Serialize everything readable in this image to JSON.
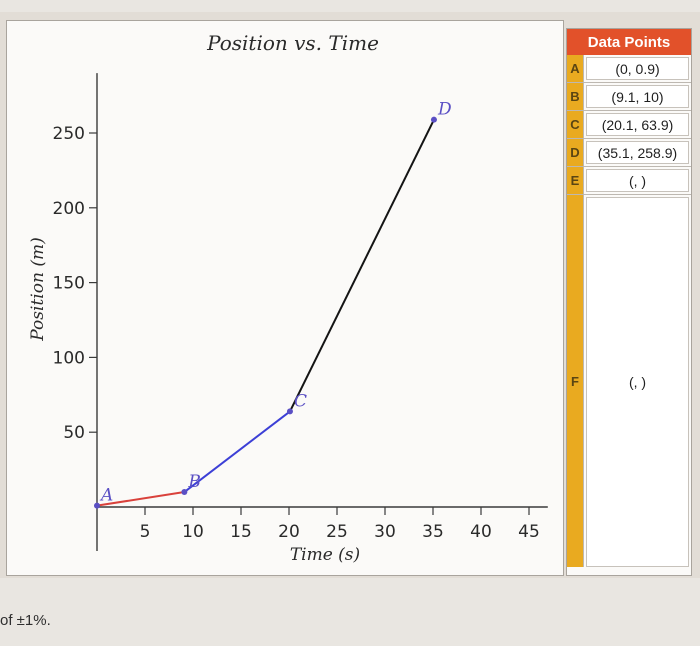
{
  "chart_data": {
    "type": "line",
    "title": "Position vs. Time",
    "xlabel": "Time (s)",
    "ylabel": "Position (m)",
    "xlim": [
      0,
      48
    ],
    "ylim": [
      0,
      290
    ],
    "x_ticks": [
      5,
      10,
      15,
      20,
      25,
      30,
      35,
      40,
      45
    ],
    "y_ticks": [
      50,
      100,
      150,
      200,
      250
    ],
    "grid": false,
    "points": [
      {
        "label": "A",
        "x": 0,
        "y": 0.9
      },
      {
        "label": "B",
        "x": 9.1,
        "y": 10
      },
      {
        "label": "C",
        "x": 20.1,
        "y": 63.9
      },
      {
        "label": "D",
        "x": 35.1,
        "y": 258.9
      }
    ],
    "segments": [
      {
        "from": "A",
        "to": "B",
        "color": "#d9413b"
      },
      {
        "from": "B",
        "to": "C",
        "color": "#3c3fd6"
      },
      {
        "from": "C",
        "to": "D",
        "color": "#141414"
      }
    ],
    "point_color": "#5a4fc4"
  },
  "table": {
    "header": "Data Points",
    "rows": [
      {
        "letter": "A",
        "value": "(0, 0.9)"
      },
      {
        "letter": "B",
        "value": "(9.1, 10)"
      },
      {
        "letter": "C",
        "value": "(20.1, 63.9)"
      },
      {
        "letter": "D",
        "value": "(35.1, 258.9)"
      },
      {
        "letter": "E",
        "value": "(, )"
      },
      {
        "letter": "F",
        "value": "(, )"
      }
    ]
  },
  "footnote": "of ±1%."
}
